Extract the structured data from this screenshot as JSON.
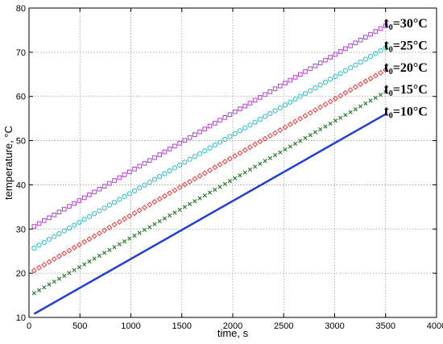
{
  "chart_data": {
    "type": "line",
    "title": "",
    "xlabel": "time, s",
    "ylabel": "temperature, °C",
    "xlim": [
      0,
      4000
    ],
    "ylim": [
      10,
      80
    ],
    "xticks": [
      0,
      500,
      1000,
      1500,
      2000,
      2500,
      3000,
      3500,
      4000
    ],
    "yticks": [
      10,
      20,
      30,
      40,
      50,
      60,
      70,
      80
    ],
    "grid": true,
    "legend": "inline-right",
    "series": [
      {
        "name": "t0=10°C",
        "label_main": "t",
        "label_sub": "0",
        "label_rest": "=10°C",
        "marker": "line",
        "color": "#1f3fd6",
        "x": [
          50,
          3500
        ],
        "y": [
          10.8,
          56.0
        ]
      },
      {
        "name": "t0=15°C",
        "label_main": "t",
        "label_sub": "0",
        "label_rest": "=15°C",
        "marker": "x",
        "color": "#2e7d32",
        "x": [
          50,
          3500
        ],
        "y": [
          15.5,
          61.0
        ]
      },
      {
        "name": "t0=20°C",
        "label_main": "t",
        "label_sub": "0",
        "label_rest": "=20°C",
        "marker": "diamond",
        "color": "#e53935",
        "x": [
          50,
          3500
        ],
        "y": [
          20.6,
          66.0
        ]
      },
      {
        "name": "t0=25°C",
        "label_main": "t",
        "label_sub": "0",
        "label_rest": "=25°C",
        "marker": "circle",
        "color": "#26bcc6",
        "x": [
          50,
          3500
        ],
        "y": [
          25.7,
          71.0
        ]
      },
      {
        "name": "t0=30°C",
        "label_main": "t",
        "label_sub": "0",
        "label_rest": "=30°C",
        "marker": "square",
        "color": "#b040d0",
        "x": [
          50,
          3500
        ],
        "y": [
          30.6,
          76.0
        ]
      }
    ]
  }
}
